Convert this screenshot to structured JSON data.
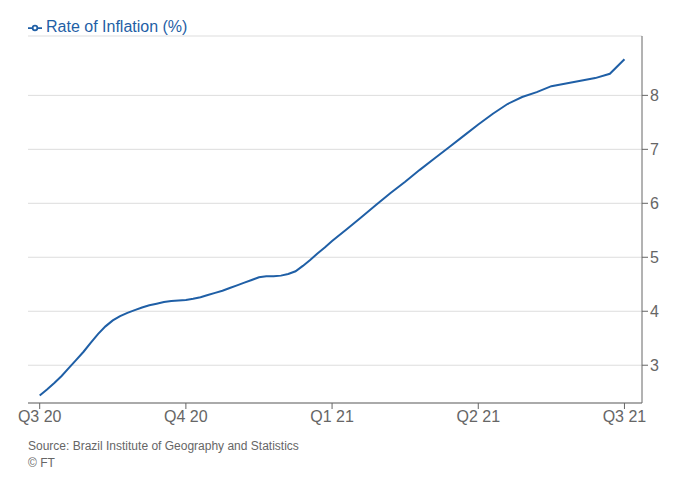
{
  "chart_data": {
    "type": "line",
    "x": [
      0.0,
      0.05,
      0.1,
      0.15,
      0.2,
      0.25,
      0.3,
      0.35,
      0.4,
      0.45,
      0.5,
      0.55,
      0.6,
      0.65,
      0.7,
      0.75,
      0.8,
      0.85,
      0.9,
      0.95,
      1.0,
      1.05,
      1.1,
      1.15,
      1.2,
      1.25,
      1.3,
      1.35,
      1.4,
      1.45,
      1.5,
      1.55,
      1.6,
      1.65,
      1.7,
      1.75,
      1.8,
      1.85,
      1.9,
      1.95,
      2.0,
      2.1,
      2.2,
      2.3,
      2.4,
      2.5,
      2.6,
      2.7,
      2.8,
      2.9,
      3.0,
      3.1,
      3.2,
      3.3,
      3.4,
      3.5,
      3.6,
      3.7,
      3.8,
      3.9,
      4.0
    ],
    "series": [
      {
        "name": "Rate of Inflation (%)",
        "color": "#1f5fa6",
        "line_style": "solid",
        "values": [
          2.44,
          2.55,
          2.67,
          2.8,
          2.95,
          3.1,
          3.25,
          3.42,
          3.58,
          3.72,
          3.83,
          3.91,
          3.97,
          4.02,
          4.07,
          4.11,
          4.14,
          4.17,
          4.19,
          4.2,
          4.21,
          4.23,
          4.26,
          4.3,
          4.34,
          4.38,
          4.43,
          4.48,
          4.53,
          4.58,
          4.63,
          4.65,
          4.65,
          4.66,
          4.69,
          4.74,
          4.84,
          4.95,
          5.07,
          5.18,
          5.3,
          5.52,
          5.74,
          5.97,
          6.19,
          6.4,
          6.62,
          6.83,
          7.04,
          7.25,
          7.46,
          7.66,
          7.84,
          7.97,
          8.06,
          8.17,
          8.22,
          8.27,
          8.32,
          8.4,
          8.67
        ]
      }
    ],
    "xlim": [
      -0.08,
      4.12
    ],
    "xticks": [
      {
        "value": 0,
        "label": "Q3 20"
      },
      {
        "value": 1,
        "label": "Q4 20"
      },
      {
        "value": 2,
        "label": "Q1 21"
      },
      {
        "value": 3,
        "label": "Q2 21"
      },
      {
        "value": 4,
        "label": "Q3 21"
      }
    ],
    "ylim": [
      2.3,
      9.1
    ],
    "yticks": [
      3,
      4,
      5,
      6,
      7,
      8
    ],
    "grid": "y",
    "legend": "upper left",
    "annotations": [
      "Source: Brazil Institute of Geography and Statistics",
      "© FT"
    ]
  }
}
